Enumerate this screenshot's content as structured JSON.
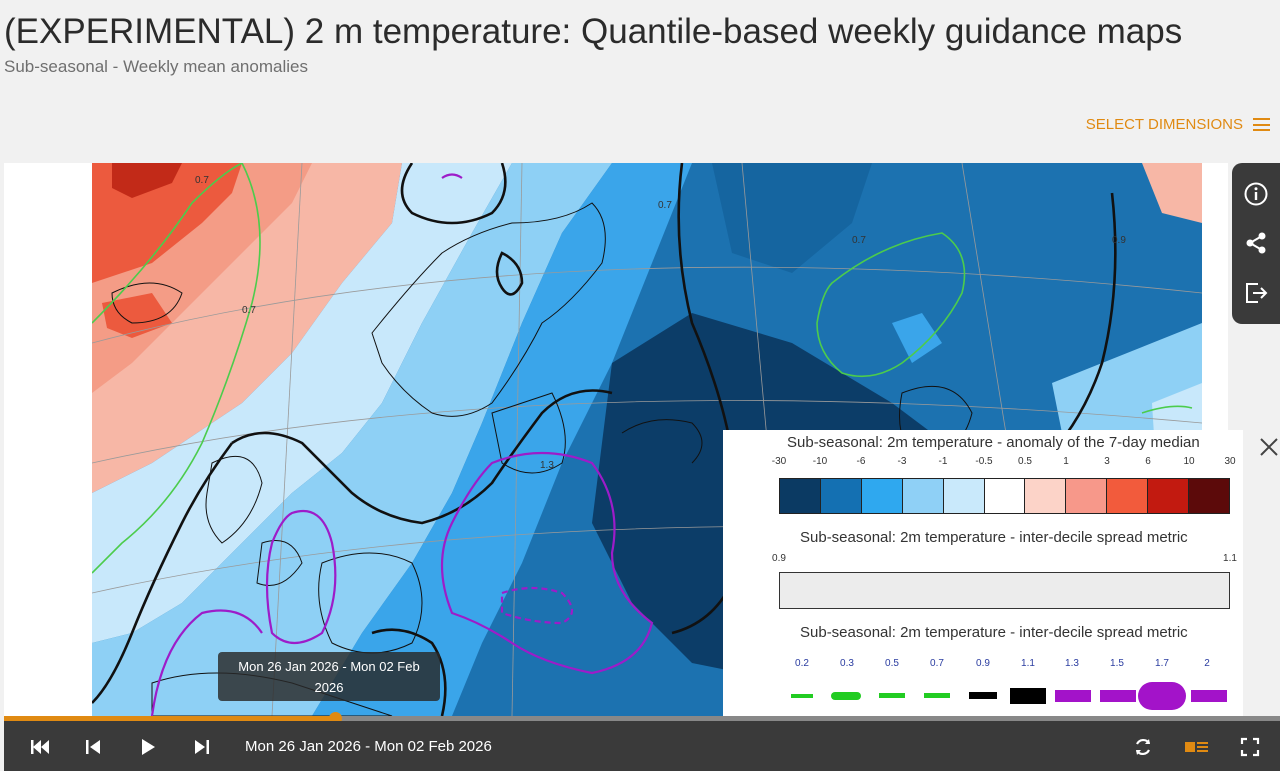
{
  "header": {
    "title": "(EXPERIMENTAL) 2 m temperature: Quantile-based weekly guidance maps",
    "subtitle": "Sub-seasonal - Weekly mean anomalies",
    "select_dimensions_label": "SELECT DIMENSIONS"
  },
  "map": {
    "contour_labels": [
      "0.7",
      "0.7",
      "0.7",
      "0.9",
      "0.7",
      "1.3"
    ],
    "colors": {
      "deep_blue": "#0c3d68",
      "blue": "#1c72b0",
      "mid_blue": "#3aa5ea",
      "light_blue": "#8ed0f5",
      "pale_blue": "#c8e8fb",
      "salmon": "#f7b7a6",
      "red": "#ec5a3e",
      "contour_green": "#4ccc4c",
      "contour_black": "#111111",
      "contour_purple": "#9d1cc9"
    }
  },
  "side_tools": {
    "icons": [
      "info-icon",
      "share-icon",
      "export-icon"
    ]
  },
  "legend": {
    "title1": "Sub-seasonal: 2m temperature - anomaly of the 7-day median",
    "ticks1": [
      "-30",
      "-10",
      "-6",
      "-3",
      "-1",
      "-0.5",
      "0.5",
      "1",
      "3",
      "6",
      "10",
      "30"
    ],
    "colors1": [
      "#0b3a63",
      "#1470b2",
      "#2fa8ef",
      "#8fd0f6",
      "#c9e9fb",
      "#ffffff",
      "#fcd3c8",
      "#f7988a",
      "#f25b3c",
      "#c21a10",
      "#5c0a0a"
    ],
    "title2": "Sub-seasonal: 2m temperature - inter-decile spread metric",
    "ticks2": [
      "0.9",
      "1.1"
    ],
    "title3": "Sub-seasonal: 2m temperature - inter-decile spread metric",
    "ticks3": [
      "0.2",
      "0.3",
      "0.5",
      "0.7",
      "0.9",
      "1.1",
      "1.3",
      "1.5",
      "1.7",
      "2"
    ],
    "close_icon": "close-icon"
  },
  "tooltip": {
    "line1": "Mon 26 Jan 2026 - Mon 02 Feb",
    "line2": "2026"
  },
  "player": {
    "date_range": "Mon 26 Jan 2026 - Mon 02 Feb 2026",
    "progress": 0.26,
    "accent": "#e08a12",
    "icons": [
      "skip-to-start-icon",
      "step-back-icon",
      "play-icon",
      "step-forward-icon",
      "loop-icon",
      "layers-icon",
      "fullscreen-icon"
    ]
  }
}
